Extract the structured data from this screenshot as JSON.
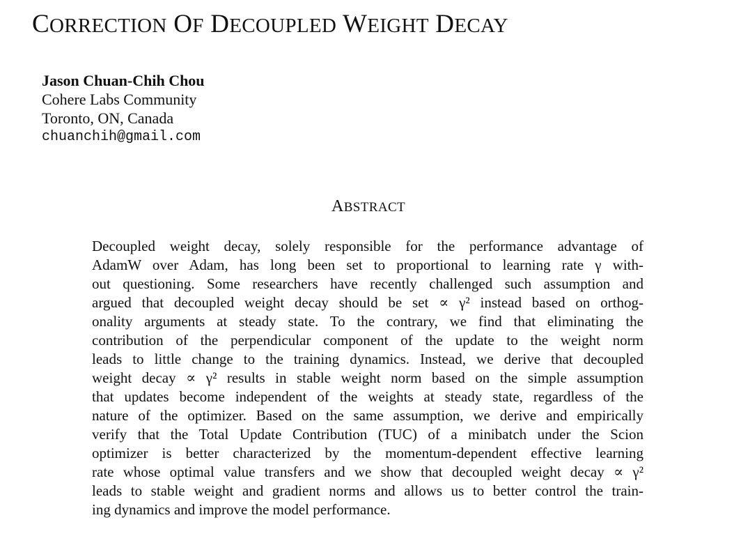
{
  "paper": {
    "title": "CORRECTION OF DECOUPLED WEIGHT DECAY",
    "author": {
      "name": "Jason Chuan-Chih Chou",
      "affiliation": "Cohere Labs Community",
      "location": "Toronto, ON, Canada",
      "email": "chuanchih@gmail.com"
    },
    "abstract": {
      "heading": "ABSTRACT",
      "lines": [
        "Decoupled weight decay, solely responsible for the performance advantage of",
        "AdamW over Adam, has long been set to proportional to learning rate γ with-",
        "out questioning. Some researchers have recently challenged such assumption and",
        "argued that decoupled weight decay should be set ∝ γ² instead based on orthog-",
        "onality arguments at steady state.  To the contrary, we find that eliminating the",
        "contribution of the perpendicular component of the update to the weight norm",
        "leads to little change to the training dynamics. Instead, we derive that decoupled",
        "weight decay ∝ γ² results in stable weight norm based on the simple assumption",
        "that updates become independent of the weights at steady state, regardless of the",
        "nature of the optimizer. Based on the same assumption, we derive and empirically",
        "verify that the Total Update Contribution (TUC) of a minibatch under the Scion",
        "optimizer is better characterized by the momentum-dependent effective learning",
        "rate whose optimal value transfers and we show that decoupled weight decay ∝ γ²",
        "leads to stable weight and gradient norms and allows us to better control the train-",
        "ing dynamics and improve the model performance."
      ]
    }
  }
}
